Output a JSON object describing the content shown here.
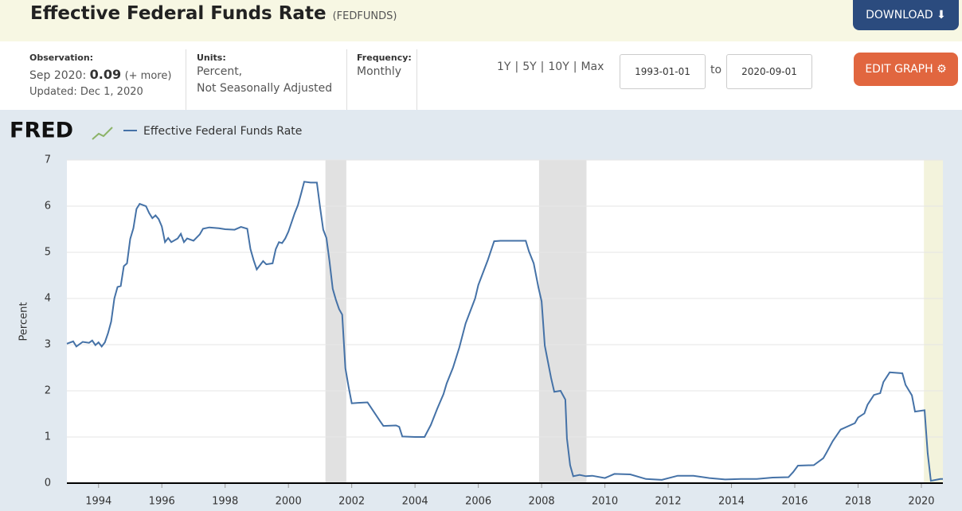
{
  "header": {
    "title": "Effective Federal Funds Rate",
    "series_id": "(FEDFUNDS)",
    "download": "DOWNLOAD"
  },
  "info": {
    "observation_label": "Observation:",
    "observation_date": "Sep 2020:",
    "observation_value": "0.09",
    "more": "(+ more)",
    "updated": "Updated: Dec 1, 2020",
    "units_label": "Units:",
    "units": [
      "Percent,",
      "Not Seasonally Adjusted"
    ],
    "frequency_label": "Frequency:",
    "frequency": "Monthly",
    "ranges": [
      "1Y",
      "5Y",
      "10Y",
      "Max"
    ],
    "range_separator": "|",
    "start_date": "1993-01-01",
    "to": "to",
    "end_date": "2020-09-01",
    "edit": "EDIT GRAPH"
  },
  "chart_data": {
    "type": "line",
    "logo": "FRED",
    "y_label": "Percent",
    "xlim": [
      1993,
      2020.68
    ],
    "xticks": [
      1994,
      1996,
      1998,
      2000,
      2002,
      2004,
      2006,
      2008,
      2010,
      2012,
      2014,
      2016,
      2018,
      2020
    ],
    "ylim": [
      0,
      7
    ],
    "yticks": [
      0,
      1,
      2,
      3,
      4,
      5,
      6,
      7
    ],
    "recessions": [
      [
        2001.17,
        2001.83
      ],
      [
        2007.92,
        2009.42
      ]
    ],
    "recession_color": "#e1e1e1",
    "highlight": [
      2020.08,
      2020.68
    ],
    "highlight_color": "#f3f3dc",
    "series": [
      {
        "name": "Effective Federal Funds Rate",
        "color": "#4572a7",
        "x": [
          1993.0,
          1993.2,
          1993.3,
          1993.5,
          1993.7,
          1993.8,
          1993.9,
          1994.0,
          1994.1,
          1994.2,
          1994.3,
          1994.4,
          1994.5,
          1994.6,
          1994.7,
          1994.8,
          1994.9,
          1995.0,
          1995.1,
          1995.2,
          1995.3,
          1995.5,
          1995.6,
          1995.7,
          1995.8,
          1995.9,
          1996.0,
          1996.1,
          1996.2,
          1996.3,
          1996.5,
          1996.6,
          1996.7,
          1996.8,
          1997.0,
          1997.2,
          1997.3,
          1997.5,
          1997.8,
          1998.0,
          1998.3,
          1998.5,
          1998.7,
          1998.8,
          1998.9,
          1999.0,
          1999.2,
          1999.3,
          1999.5,
          1999.6,
          1999.7,
          1999.8,
          1999.9,
          2000.0,
          2000.2,
          2000.3,
          2000.4,
          2000.5,
          2000.7,
          2000.9,
          2001.0,
          2001.1,
          2001.2,
          2001.3,
          2001.4,
          2001.5,
          2001.6,
          2001.7,
          2001.8,
          2001.9,
          2002.0,
          2002.2,
          2002.5,
          2002.9,
          2003.0,
          2003.4,
          2003.5,
          2003.6,
          2004.0,
          2004.3,
          2004.5,
          2004.7,
          2004.9,
          2005.0,
          2005.2,
          2005.4,
          2005.6,
          2005.9,
          2006.0,
          2006.3,
          2006.5,
          2006.7,
          2007.0,
          2007.5,
          2007.6,
          2007.75,
          2007.9,
          2008.0,
          2008.1,
          2008.3,
          2008.4,
          2008.6,
          2008.75,
          2008.8,
          2008.9,
          2009.0,
          2009.2,
          2009.4,
          2009.6,
          2010.0,
          2010.3,
          2010.8,
          2011.3,
          2011.8,
          2012.3,
          2012.8,
          2013.3,
          2013.8,
          2014.3,
          2014.8,
          2015.3,
          2015.8,
          2015.95,
          2016.1,
          2016.6,
          2016.9,
          2017.0,
          2017.2,
          2017.45,
          2017.9,
          2018.0,
          2018.2,
          2018.3,
          2018.5,
          2018.7,
          2018.8,
          2019.0,
          2019.4,
          2019.5,
          2019.7,
          2019.8,
          2020.1,
          2020.2,
          2020.3,
          2020.6,
          2020.68
        ],
        "values": [
          3.02,
          3.07,
          2.96,
          3.06,
          3.04,
          3.09,
          2.99,
          3.05,
          2.96,
          3.05,
          3.25,
          3.5,
          4.0,
          4.25,
          4.27,
          4.7,
          4.76,
          5.29,
          5.52,
          5.94,
          6.05,
          6.0,
          5.85,
          5.74,
          5.8,
          5.72,
          5.56,
          5.22,
          5.31,
          5.22,
          5.3,
          5.4,
          5.22,
          5.3,
          5.25,
          5.39,
          5.51,
          5.54,
          5.52,
          5.5,
          5.49,
          5.55,
          5.51,
          5.07,
          4.83,
          4.63,
          4.81,
          4.74,
          4.76,
          5.07,
          5.22,
          5.2,
          5.3,
          5.45,
          5.85,
          6.02,
          6.27,
          6.53,
          6.51,
          6.51,
          5.98,
          5.49,
          5.31,
          4.8,
          4.21,
          3.97,
          3.77,
          3.65,
          2.49,
          2.09,
          1.73,
          1.74,
          1.75,
          1.34,
          1.24,
          1.25,
          1.22,
          1.01,
          1.0,
          1.0,
          1.26,
          1.61,
          1.93,
          2.16,
          2.5,
          2.94,
          3.46,
          4.0,
          4.29,
          4.83,
          5.24,
          5.25,
          5.25,
          5.25,
          5.02,
          4.76,
          4.24,
          3.94,
          2.98,
          2.28,
          1.98,
          2.0,
          1.81,
          0.97,
          0.39,
          0.15,
          0.18,
          0.15,
          0.16,
          0.11,
          0.2,
          0.19,
          0.09,
          0.07,
          0.16,
          0.16,
          0.11,
          0.08,
          0.09,
          0.09,
          0.12,
          0.13,
          0.24,
          0.38,
          0.39,
          0.54,
          0.66,
          0.91,
          1.16,
          1.3,
          1.42,
          1.51,
          1.7,
          1.91,
          1.95,
          2.19,
          2.4,
          2.38,
          2.13,
          1.9,
          1.55,
          1.58,
          0.65,
          0.05,
          0.09,
          0.09
        ]
      }
    ]
  }
}
